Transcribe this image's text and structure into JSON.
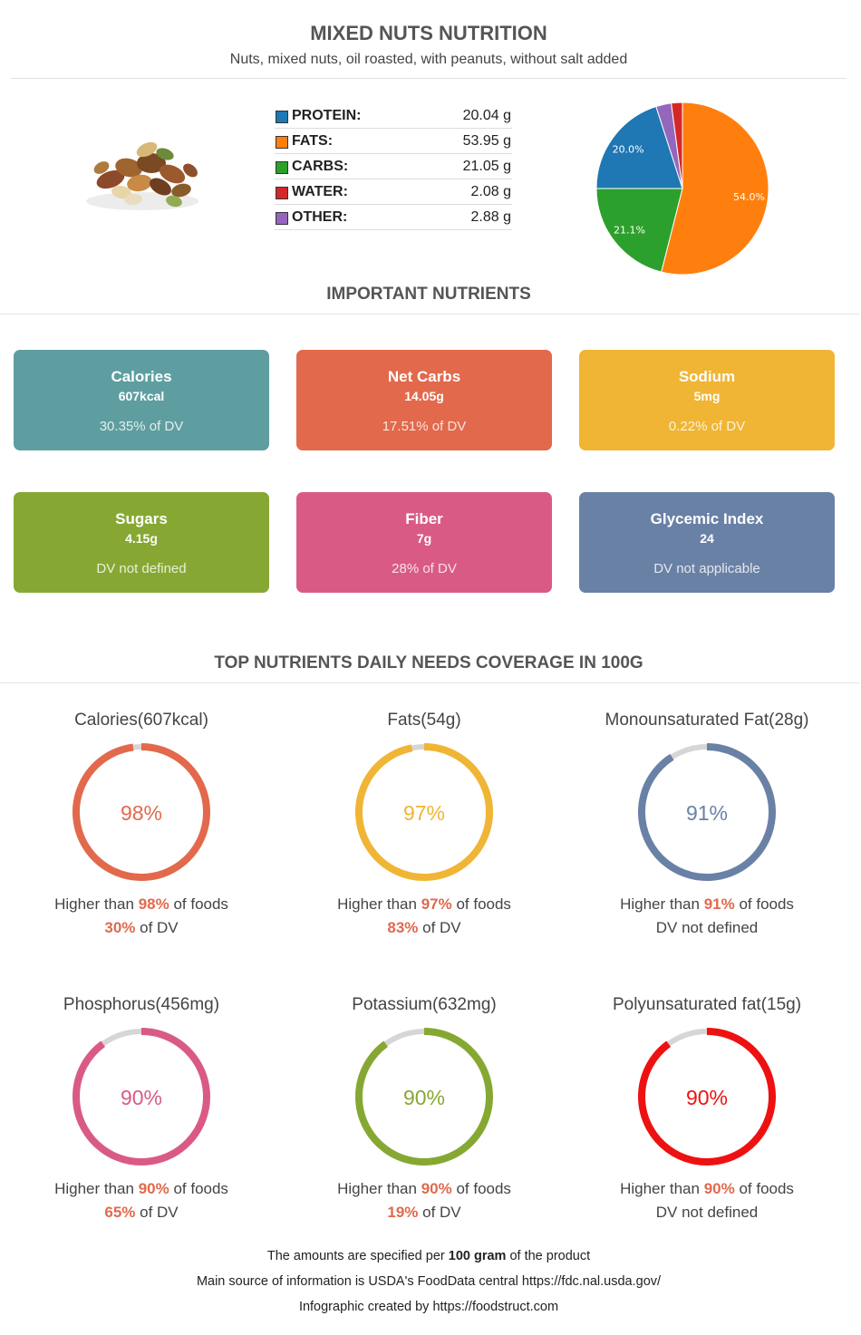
{
  "header": {
    "title": "MIXED NUTS NUTRITION",
    "subtitle": "Nuts, mixed nuts, oil roasted, with peanuts, without salt added"
  },
  "macros": [
    {
      "label": "PROTEIN:",
      "value": "20.04 g",
      "color": "#1f77b4"
    },
    {
      "label": "FATS:",
      "value": "53.95 g",
      "color": "#ff7f0e"
    },
    {
      "label": "CARBS:",
      "value": "21.05 g",
      "color": "#2ca02c"
    },
    {
      "label": "WATER:",
      "value": "2.08 g",
      "color": "#d62728"
    },
    {
      "label": "OTHER:",
      "value": "2.88 g",
      "color": "#9467bd"
    }
  ],
  "chart_data": {
    "type": "pie",
    "slices": [
      {
        "name": "FATS",
        "value": 53.95,
        "label": "54.0%",
        "color": "#ff7f0e"
      },
      {
        "name": "CARBS",
        "value": 21.05,
        "label": "21.1%",
        "color": "#2ca02c"
      },
      {
        "name": "PROTEIN",
        "value": 20.04,
        "label": "20.0%",
        "color": "#1f77b4"
      },
      {
        "name": "OTHER",
        "value": 2.88,
        "label": "",
        "color": "#9467bd"
      },
      {
        "name": "WATER",
        "value": 2.08,
        "label": "",
        "color": "#d62728"
      }
    ]
  },
  "sections": {
    "important": "IMPORTANT NUTRIENTS",
    "coverage": "TOP NUTRIENTS DAILY NEEDS COVERAGE IN 100G"
  },
  "cards": [
    {
      "name": "Calories",
      "value": "607kcal",
      "dv": "30.35% of DV",
      "color": "#5f9ea0"
    },
    {
      "name": "Net Carbs",
      "value": "14.05g",
      "dv": "17.51% of DV",
      "color": "#e2694c"
    },
    {
      "name": "Sodium",
      "value": "5mg",
      "dv": "0.22% of DV",
      "color": "#f0b535"
    },
    {
      "name": "Sugars",
      "value": "4.15g",
      "dv": "DV not defined",
      "color": "#86a833"
    },
    {
      "name": "Fiber",
      "value": "7g",
      "dv": "28% of DV",
      "color": "#d95b85"
    },
    {
      "name": "Glycemic Index",
      "value": "24",
      "dv": "DV not applicable",
      "color": "#6a81a6"
    }
  ],
  "rings": [
    {
      "title": "Calories(607kcal)",
      "percent": 98,
      "pct_text": "98%",
      "color": "#e2694c",
      "pre": "Higher than ",
      "hl": "98%",
      "post": " of foods",
      "dv_hl": "30%",
      "dv_post": " of DV",
      "dv_text": ""
    },
    {
      "title": "Fats(54g)",
      "percent": 97,
      "pct_text": "97%",
      "color": "#f0b535",
      "pre": "Higher than ",
      "hl": "97%",
      "post": " of foods",
      "dv_hl": "83%",
      "dv_post": " of DV",
      "dv_text": ""
    },
    {
      "title": "Monounsaturated Fat(28g)",
      "percent": 91,
      "pct_text": "91%",
      "color": "#6a81a6",
      "pre": "Higher than ",
      "hl": "91%",
      "post": " of foods",
      "dv_hl": "",
      "dv_post": "",
      "dv_text": "DV not defined"
    },
    {
      "title": "Phosphorus(456mg)",
      "percent": 90,
      "pct_text": "90%",
      "color": "#d95b85",
      "pre": "Higher than ",
      "hl": "90%",
      "post": " of foods",
      "dv_hl": "65%",
      "dv_post": " of DV",
      "dv_text": ""
    },
    {
      "title": "Potassium(632mg)",
      "percent": 90,
      "pct_text": "90%",
      "color": "#86a833",
      "pre": "Higher than ",
      "hl": "90%",
      "post": " of foods",
      "dv_hl": "19%",
      "dv_post": " of DV",
      "dv_text": ""
    },
    {
      "title": "Polyunsaturated fat(15g)",
      "percent": 90,
      "pct_text": "90%",
      "color": "#ee1111",
      "pre": "Higher than ",
      "hl": "90%",
      "post": " of foods",
      "dv_hl": "",
      "dv_post": "",
      "dv_text": "DV not defined"
    }
  ],
  "footer": {
    "line1_pre": "The amounts are specified per ",
    "line1_bold": "100 gram",
    "line1_post": " of the product",
    "line2": "Main source of information is USDA's FoodData central https://fdc.nal.usda.gov/",
    "line3": "Infographic created by https://foodstruct.com"
  },
  "colors": {
    "ring_track": "#d6d6d6",
    "highlight": "#e06a4e"
  }
}
